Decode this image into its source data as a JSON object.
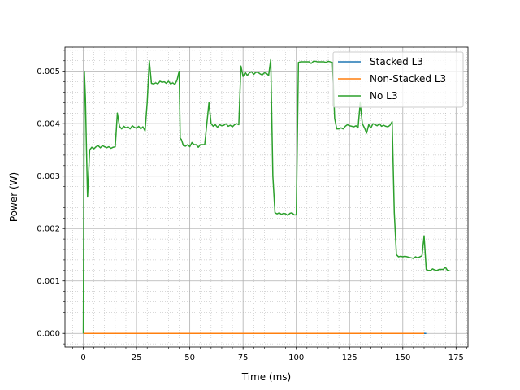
{
  "chart_data": {
    "type": "line",
    "title": "",
    "xlabel": "Time (ms)",
    "ylabel": "Power (W)",
    "xlim": [
      -8.6,
      180.6
    ],
    "ylim": [
      -0.00026,
      0.00546
    ],
    "x_ticks": [
      0,
      25,
      50,
      75,
      100,
      125,
      150,
      175
    ],
    "x_tick_labels": [
      "0",
      "25",
      "50",
      "75",
      "100",
      "125",
      "150",
      "175"
    ],
    "y_ticks": [
      0,
      0.001,
      0.002,
      0.003,
      0.004,
      0.005
    ],
    "y_tick_labels": [
      "0.000",
      "0.001",
      "0.002",
      "0.003",
      "0.004",
      "0.005"
    ],
    "grid": {
      "major": true,
      "minor": true
    },
    "legend_position": "top-right",
    "series": [
      {
        "name": "Stacked L3",
        "color": "#1f77b4",
        "points": [
          [
            0,
            0
          ],
          [
            161,
            0
          ]
        ]
      },
      {
        "name": "Non-Stacked L3",
        "color": "#ff7f0e",
        "points": [
          [
            0,
            0
          ],
          [
            160,
            0
          ]
        ]
      },
      {
        "name": "No L3",
        "color": "#2ca02c",
        "points": [
          [
            0,
            0
          ],
          [
            0.5,
            0.005
          ],
          [
            1,
            0.0045
          ],
          [
            1.5,
            0.0035
          ],
          [
            2,
            0.0026
          ],
          [
            3,
            0.0035
          ],
          [
            4,
            0.00355
          ],
          [
            5,
            0.00352
          ],
          [
            6,
            0.00356
          ],
          [
            7,
            0.00358
          ],
          [
            8,
            0.00354
          ],
          [
            9,
            0.00358
          ],
          [
            10,
            0.00356
          ],
          [
            11,
            0.00354
          ],
          [
            12,
            0.00356
          ],
          [
            13,
            0.00353
          ],
          [
            14,
            0.00355
          ],
          [
            15,
            0.00356
          ],
          [
            16,
            0.0042
          ],
          [
            17,
            0.00395
          ],
          [
            18,
            0.0039
          ],
          [
            19,
            0.00395
          ],
          [
            20,
            0.00392
          ],
          [
            21,
            0.00394
          ],
          [
            22,
            0.0039
          ],
          [
            23,
            0.00396
          ],
          [
            24,
            0.00393
          ],
          [
            25,
            0.00391
          ],
          [
            26,
            0.00395
          ],
          [
            27,
            0.0039
          ],
          [
            28,
            0.00394
          ],
          [
            29,
            0.00386
          ],
          [
            30,
            0.0044
          ],
          [
            31,
            0.0052
          ],
          [
            32,
            0.00477
          ],
          [
            33,
            0.00476
          ],
          [
            34,
            0.00478
          ],
          [
            35,
            0.00476
          ],
          [
            36,
            0.00481
          ],
          [
            37,
            0.00479
          ],
          [
            38,
            0.0048
          ],
          [
            39,
            0.00477
          ],
          [
            40,
            0.00481
          ],
          [
            41,
            0.00476
          ],
          [
            42,
            0.00478
          ],
          [
            43,
            0.00475
          ],
          [
            44,
            0.00483
          ],
          [
            45,
            0.005
          ],
          [
            45.5,
            0.00372
          ],
          [
            46,
            0.0037
          ],
          [
            47,
            0.00358
          ],
          [
            48,
            0.00357
          ],
          [
            49,
            0.0036
          ],
          [
            50,
            0.00356
          ],
          [
            51,
            0.00364
          ],
          [
            52,
            0.0036
          ],
          [
            53,
            0.0036
          ],
          [
            54,
            0.00355
          ],
          [
            55,
            0.0036
          ],
          [
            56,
            0.0036
          ],
          [
            57,
            0.0036
          ],
          [
            58,
            0.004
          ],
          [
            59,
            0.0044
          ],
          [
            60,
            0.004
          ],
          [
            61,
            0.00395
          ],
          [
            62,
            0.00398
          ],
          [
            63,
            0.00393
          ],
          [
            64,
            0.00398
          ],
          [
            65,
            0.00396
          ],
          [
            66,
            0.00397
          ],
          [
            67,
            0.004
          ],
          [
            68,
            0.00395
          ],
          [
            69,
            0.00397
          ],
          [
            70,
            0.00394
          ],
          [
            71,
            0.00398
          ],
          [
            72,
            0.004
          ],
          [
            73,
            0.00398
          ],
          [
            74,
            0.0051
          ],
          [
            75,
            0.0049
          ],
          [
            76,
            0.00498
          ],
          [
            77,
            0.00492
          ],
          [
            78,
            0.00497
          ],
          [
            79,
            0.00499
          ],
          [
            80,
            0.00494
          ],
          [
            81,
            0.00498
          ],
          [
            82,
            0.00498
          ],
          [
            83,
            0.00495
          ],
          [
            84,
            0.00493
          ],
          [
            85,
            0.00497
          ],
          [
            86,
            0.00496
          ],
          [
            87,
            0.00492
          ],
          [
            88,
            0.00522
          ],
          [
            89,
            0.003
          ],
          [
            90,
            0.0023
          ],
          [
            91,
            0.00228
          ],
          [
            92,
            0.0023
          ],
          [
            93,
            0.00227
          ],
          [
            94,
            0.00229
          ],
          [
            95,
            0.00228
          ],
          [
            96,
            0.00225
          ],
          [
            97,
            0.00229
          ],
          [
            98,
            0.0023
          ],
          [
            99,
            0.00226
          ],
          [
            100,
            0.00226
          ],
          [
            101,
            0.00517
          ],
          [
            102,
            0.00518
          ],
          [
            103,
            0.00518
          ],
          [
            104,
            0.00518
          ],
          [
            105,
            0.00518
          ],
          [
            106,
            0.00518
          ],
          [
            107,
            0.00515
          ],
          [
            108,
            0.00519
          ],
          [
            109,
            0.00519
          ],
          [
            110,
            0.00518
          ],
          [
            111,
            0.00518
          ],
          [
            112,
            0.00518
          ],
          [
            113,
            0.00518
          ],
          [
            114,
            0.00517
          ],
          [
            115,
            0.00519
          ],
          [
            116,
            0.00518
          ],
          [
            117,
            0.00517
          ],
          [
            118,
            0.0041
          ],
          [
            119,
            0.0039
          ],
          [
            120,
            0.0039
          ],
          [
            121,
            0.00392
          ],
          [
            122,
            0.0039
          ],
          [
            123,
            0.00395
          ],
          [
            124,
            0.00398
          ],
          [
            125,
            0.00396
          ],
          [
            126,
            0.00395
          ],
          [
            127,
            0.00394
          ],
          [
            128,
            0.00396
          ],
          [
            129,
            0.00392
          ],
          [
            130,
            0.0044
          ],
          [
            131,
            0.004
          ],
          [
            132,
            0.00392
          ],
          [
            133,
            0.00382
          ],
          [
            134,
            0.00398
          ],
          [
            135,
            0.00392
          ],
          [
            136,
            0.004
          ],
          [
            137,
            0.00398
          ],
          [
            138,
            0.00396
          ],
          [
            139,
            0.004
          ],
          [
            140,
            0.00395
          ],
          [
            141,
            0.00397
          ],
          [
            142,
            0.00395
          ],
          [
            143,
            0.00394
          ],
          [
            144,
            0.00397
          ],
          [
            145,
            0.00404
          ],
          [
            146,
            0.0023
          ],
          [
            147,
            0.0015
          ],
          [
            148,
            0.00146
          ],
          [
            149,
            0.00147
          ],
          [
            150,
            0.00146
          ],
          [
            151,
            0.00147
          ],
          [
            152,
            0.00146
          ],
          [
            153,
            0.00145
          ],
          [
            154,
            0.00144
          ],
          [
            155,
            0.00143
          ],
          [
            156,
            0.00146
          ],
          [
            157,
            0.00144
          ],
          [
            158,
            0.00146
          ],
          [
            159,
            0.00148
          ],
          [
            160,
            0.00186
          ],
          [
            161,
            0.00122
          ],
          [
            162,
            0.0012
          ],
          [
            163,
            0.0012
          ],
          [
            164,
            0.00123
          ],
          [
            165,
            0.00121
          ],
          [
            166,
            0.0012
          ],
          [
            167,
            0.00122
          ],
          [
            168,
            0.00122
          ],
          [
            169,
            0.00122
          ],
          [
            170,
            0.00126
          ],
          [
            171,
            0.0012
          ],
          [
            172,
            0.0012
          ]
        ]
      }
    ]
  }
}
